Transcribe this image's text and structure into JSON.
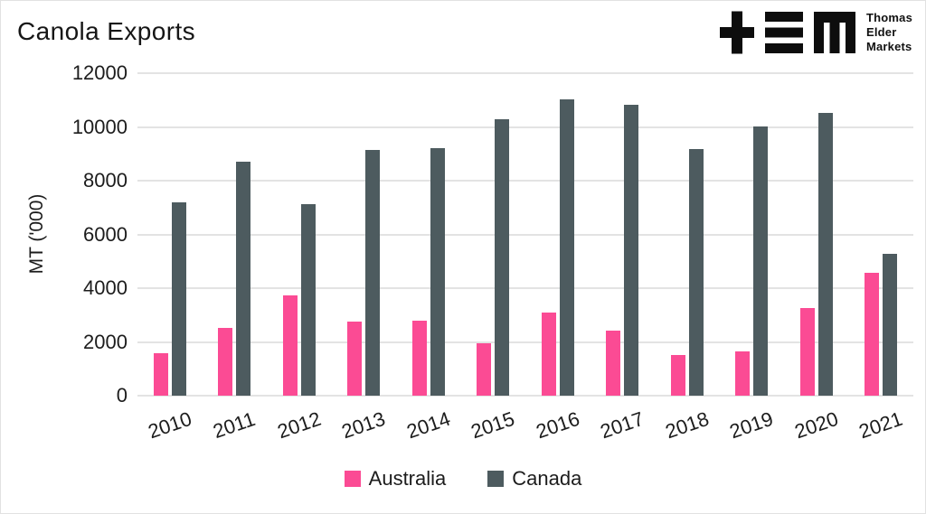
{
  "header": {
    "title": "Canola Exports",
    "logo": {
      "brand_lines": [
        "Thomas",
        "Elder",
        "Markets"
      ]
    }
  },
  "colors": {
    "australia": "#FB4B94",
    "canada": "#4D5B5F",
    "gridline": "#E3E3E3",
    "text": "#1C1C1C",
    "logo": "#0D0D0D"
  },
  "chart_data": {
    "type": "bar",
    "title": "Canola Exports",
    "categories": [
      "2010",
      "2011",
      "2012",
      "2013",
      "2014",
      "2015",
      "2016",
      "2017",
      "2018",
      "2019",
      "2020",
      "2021"
    ],
    "series": [
      {
        "name": "Australia",
        "color": "#FB4B94",
        "values": [
          1580,
          2530,
          3740,
          2760,
          2800,
          1960,
          3090,
          2430,
          1520,
          1640,
          3270,
          4580
        ]
      },
      {
        "name": "Canada",
        "color": "#4D5B5F",
        "values": [
          7200,
          8710,
          7110,
          9160,
          9200,
          10280,
          11020,
          10830,
          9180,
          10030,
          10510,
          5280
        ]
      }
    ],
    "xlabel": "",
    "ylabel": "MT ('000)",
    "ylim": [
      0,
      12000
    ],
    "yticks": [
      0,
      2000,
      4000,
      6000,
      8000,
      10000,
      12000
    ],
    "grid": true,
    "legend_position": "bottom"
  }
}
